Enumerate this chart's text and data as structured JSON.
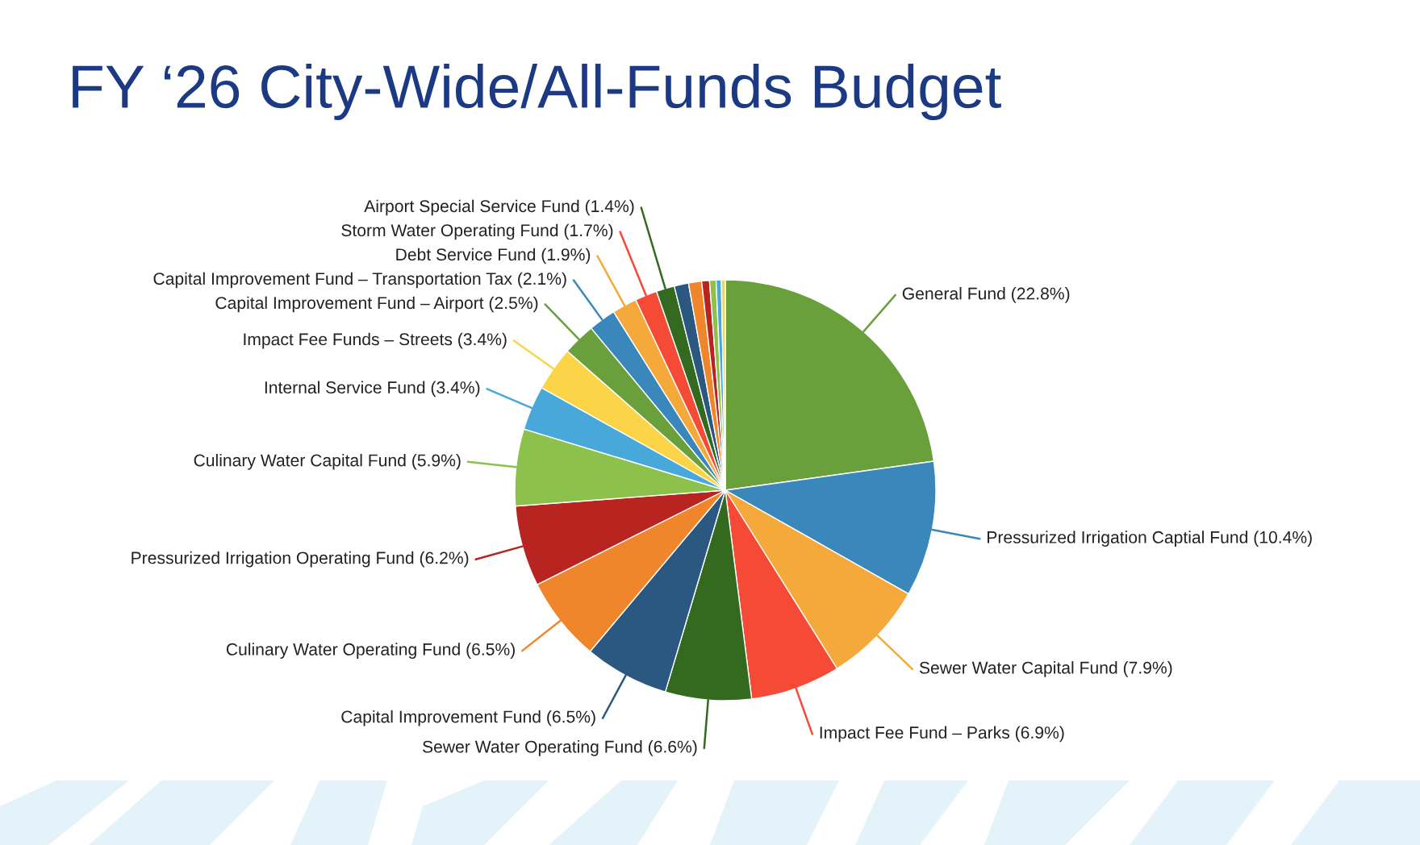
{
  "chart_data": {
    "type": "pie",
    "title": "FY ‘26 City-Wide/All-Funds Budget",
    "categories": [
      "General Fund",
      "Pressurized Irrigation Captial Fund",
      "Sewer Water Capital Fund",
      "Impact Fee Fund – Parks",
      "Sewer Water Operating Fund",
      "Capital Improvement Fund",
      "Culinary Water Operating Fund",
      "Pressurized Irrigation Operating Fund",
      "Culinary Water Capital Fund",
      "Internal Service Fund",
      "Impact Fee Funds – Streets",
      "Capital Improvement Fund – Airport",
      "Capital Improvement Fund – Transportation Tax",
      "Debt Service Fund",
      "Storm Water Operating Fund",
      "Airport Special Service Fund",
      null,
      null,
      null,
      null,
      null,
      null
    ],
    "values": [
      22.8,
      10.4,
      7.9,
      6.9,
      6.6,
      6.5,
      6.5,
      6.2,
      5.9,
      3.4,
      3.4,
      2.5,
      2.1,
      1.9,
      1.7,
      1.4,
      1.1,
      1.0,
      0.6,
      0.5,
      0.4,
      0.3
    ],
    "value_labels": [
      "(22.8%)",
      "(10.4%)",
      "(7.9%)",
      "(6.9%)",
      "(6.6%)",
      "(6.5%)",
      "(6.5%)",
      "(6.2%)",
      "(5.9%)",
      "(3.4%)",
      "(3.4%)",
      "(2.5%)",
      "(2.1%)",
      "(1.9%)",
      "(1.7%)",
      "(1.4%)",
      null,
      null,
      null,
      null,
      null,
      null
    ],
    "colors": [
      "#6aa03c",
      "#3a88bb",
      "#f5a93a",
      "#f44a36",
      "#336a20",
      "#2a5880",
      "#f0862c",
      "#b82420",
      "#8cc24c",
      "#48a8da",
      "#fbd448",
      "#6aa03c",
      "#3a88bb",
      "#f5a93a",
      "#f44a36",
      "#336a20",
      "#2a5880",
      "#f0862c",
      "#b82420",
      "#8cc24c",
      "#48a8da",
      "#fbd448"
    ]
  }
}
